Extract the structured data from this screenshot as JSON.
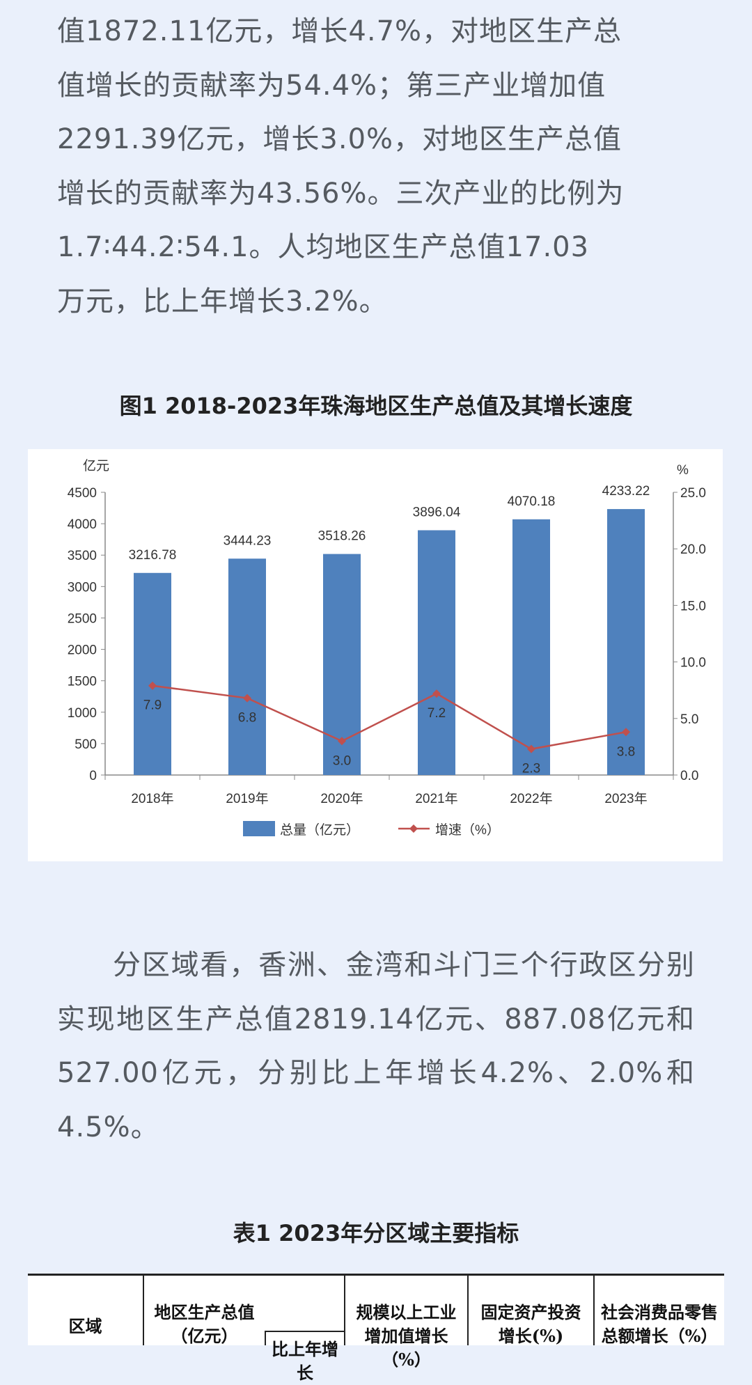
{
  "paragraph1": [
    "值1872.11亿元，增长4.7%，对地区生产总",
    "值增长的贡献率为54.4%；第三产业增加值",
    "2291.39亿元，增长3.0%，对地区生产总值",
    "增长的贡献率为43.56%。三次产业的比例为",
    "1.7∶44.2∶54.1。人均地区生产总值17.03",
    "万元，比上年增长3.2%。"
  ],
  "figure_caption": "图1  2018-2023年珠海地区生产总值及其增长速度",
  "chart_data": {
    "type": "bar",
    "categories": [
      "2018年",
      "2019年",
      "2020年",
      "2021年",
      "2022年",
      "2023年"
    ],
    "series": [
      {
        "name": "总量（亿元）",
        "type": "bar",
        "axis": "left",
        "values": [
          3216.78,
          3444.23,
          3518.26,
          3896.04,
          4070.18,
          4233.22
        ],
        "labels": [
          "3216.78",
          "3444.23",
          "3518.26",
          "3896.04",
          "4070.18",
          "4233.22"
        ],
        "color": "#4f81bd"
      },
      {
        "name": "增速（%）",
        "type": "line",
        "axis": "right",
        "values": [
          7.9,
          6.8,
          3.0,
          7.2,
          2.3,
          3.8
        ],
        "labels": [
          "7.9",
          "6.8",
          "3.0",
          "7.2",
          "2.3",
          "3.8"
        ],
        "color": "#c0504d"
      }
    ],
    "ylabel_left": "亿元",
    "ylabel_right": "%",
    "ylim_left": [
      0,
      4500
    ],
    "ylim_right": [
      0,
      25
    ],
    "yticks_left": [
      "0",
      "500",
      "1000",
      "1500",
      "2000",
      "2500",
      "3000",
      "3500",
      "4000",
      "4500"
    ],
    "yticks_right": [
      "0.0",
      "5.0",
      "10.0",
      "15.0",
      "20.0",
      "25.0"
    ],
    "grid": false,
    "legend_position": "bottom"
  },
  "paragraph2": [
    "分区域看，香洲、金湾和斗门三个行政区分别实现地区生产总值2819.14亿元、887.08亿元和527.00亿元，分别比上年增长4.2%、2.0%和4.5%。"
  ],
  "table_caption": "表1  2023年分区域主要指标",
  "table": {
    "headers": [
      "区域",
      "地区生产总值（亿元）",
      "比上年增长",
      "规模以上工业增加值增长（%）",
      "固定资产投资增长(%)",
      "社会消费品零售总额增长（%）"
    ]
  }
}
